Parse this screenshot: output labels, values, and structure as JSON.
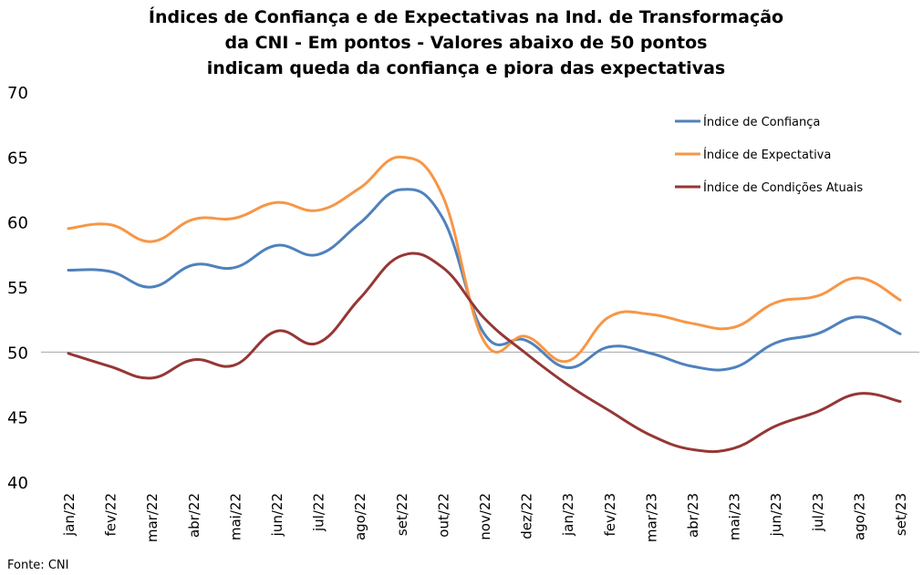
{
  "chart_data": {
    "type": "line",
    "title_lines": [
      "Índices de Confiança e de Expectativas na Ind. de Transformação",
      "da CNI - Em pontos - Valores abaixo de 50 pontos",
      "indicam queda da confiança e piora das expectativas"
    ],
    "categories": [
      "jan/22",
      "fev/22",
      "mar/22",
      "abr/22",
      "mai/22",
      "jun/22",
      "jul/22",
      "ago/22",
      "set/22",
      "out/22",
      "nov/22",
      "dez/22",
      "jan/23",
      "fev/23",
      "mar/23",
      "abr/23",
      "mai/23",
      "jun/23",
      "jul/23",
      "ago/23",
      "set/23"
    ],
    "ylim": [
      40,
      70
    ],
    "yticks": [
      "40",
      "45",
      "50",
      "55",
      "60",
      "65",
      "70"
    ],
    "reference_line": 50,
    "grid": false,
    "legend_position": "top-right",
    "series": [
      {
        "name": "Índice de Confiança",
        "color": "#4f81bd",
        "values": [
          56.3,
          56.2,
          55.0,
          56.7,
          56.5,
          58.2,
          57.5,
          59.9,
          62.5,
          60.3,
          51.4,
          50.9,
          48.8,
          50.4,
          49.9,
          48.9,
          48.8,
          50.7,
          51.4,
          52.7,
          51.4
        ]
      },
      {
        "name": "Índice de Expectativa",
        "color": "#f79646",
        "values": [
          59.5,
          59.8,
          58.5,
          60.2,
          60.3,
          61.5,
          60.9,
          62.6,
          65.0,
          62.0,
          50.8,
          51.2,
          49.3,
          52.7,
          52.9,
          52.2,
          51.9,
          53.8,
          54.3,
          55.7,
          54.0
        ]
      },
      {
        "name": "Índice de Condições Atuais",
        "color": "#953735",
        "values": [
          49.9,
          48.9,
          48.0,
          49.4,
          49.0,
          51.6,
          50.7,
          54.1,
          57.4,
          56.5,
          52.6,
          49.9,
          47.5,
          45.5,
          43.6,
          42.5,
          42.6,
          44.3,
          45.4,
          46.8,
          46.2
        ]
      }
    ],
    "source": "Fonte: CNI"
  }
}
